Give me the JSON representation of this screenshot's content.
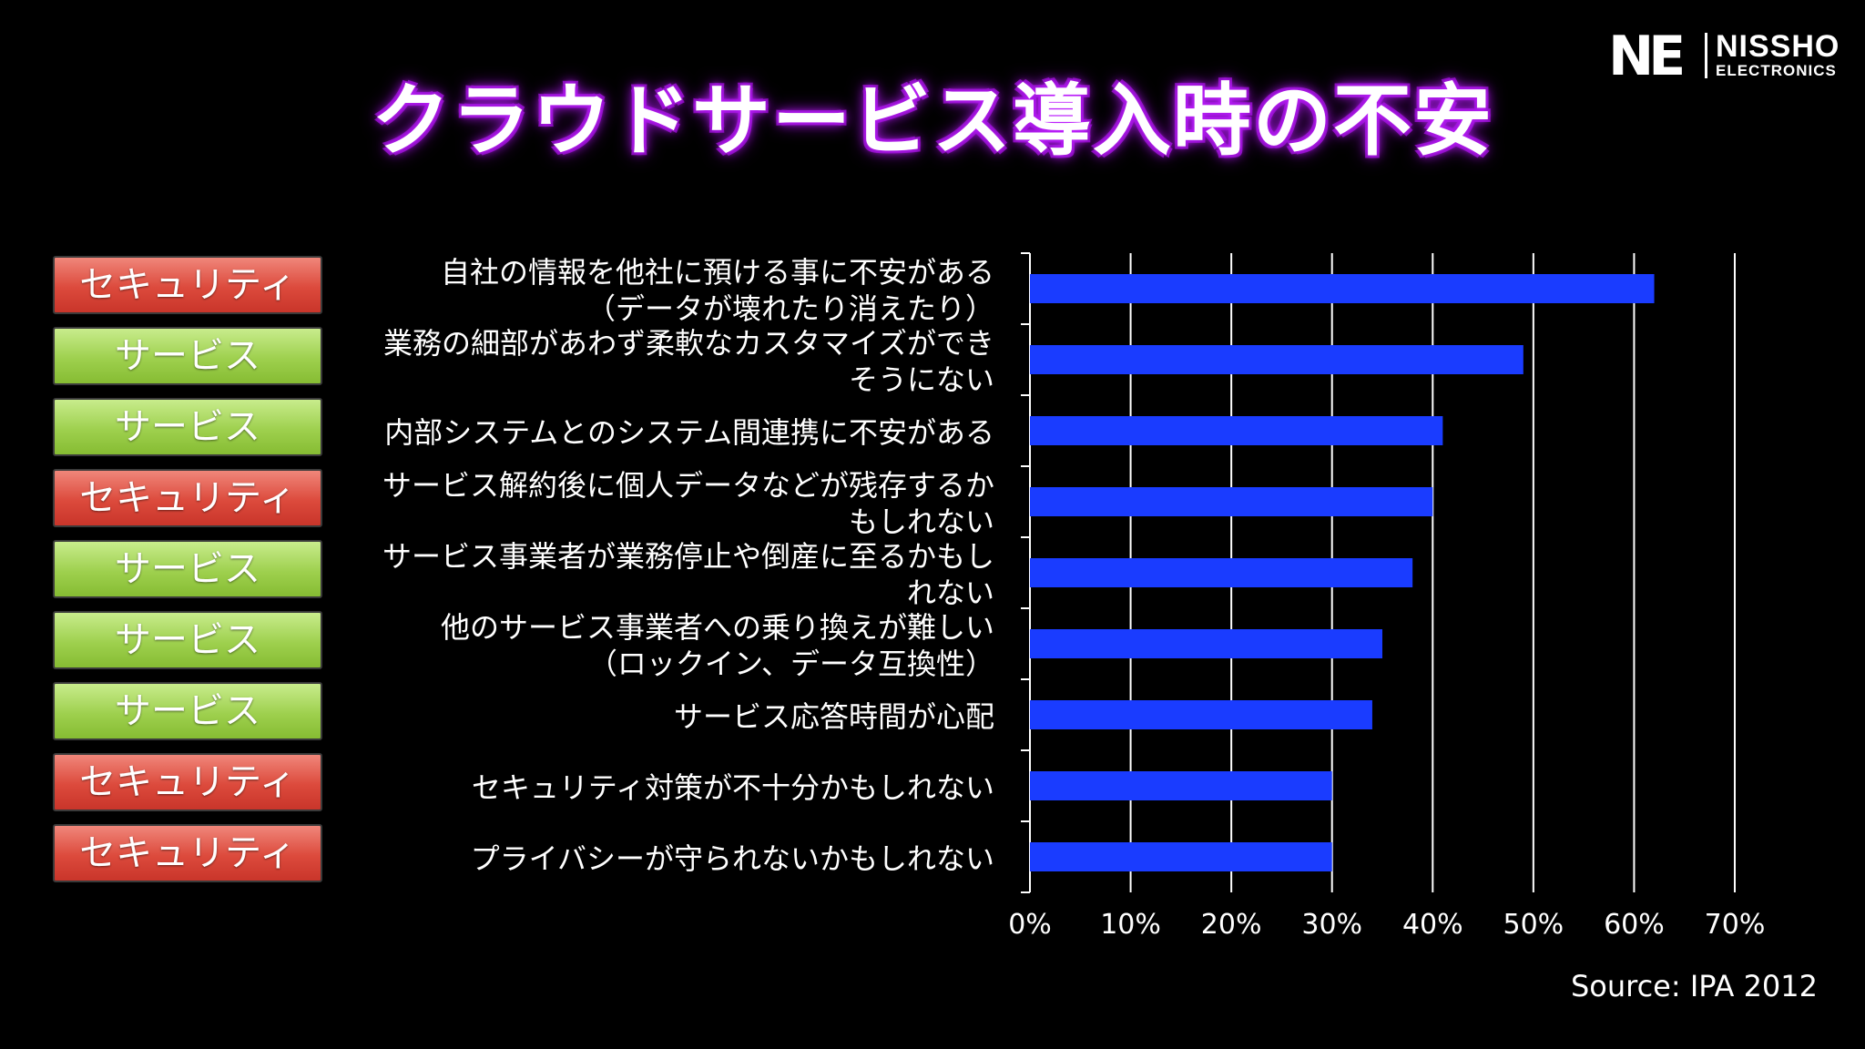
{
  "title": "クラウドサービス導入時の不安",
  "logo": {
    "mark": "NE",
    "line1": "NISSHO",
    "line2": "ELECTRONICS"
  },
  "source": "Source: IPA 2012",
  "colors": {
    "bar": "#1a3cff",
    "security": "#d9473a",
    "service": "#9bcf4e"
  },
  "tags": [
    {
      "label": "セキュリティ",
      "kind": "security"
    },
    {
      "label": "サービス",
      "kind": "service"
    },
    {
      "label": "サービス",
      "kind": "service"
    },
    {
      "label": "セキュリティ",
      "kind": "security"
    },
    {
      "label": "サービス",
      "kind": "service"
    },
    {
      "label": "サービス",
      "kind": "service"
    },
    {
      "label": "サービス",
      "kind": "service"
    },
    {
      "label": "セキュリティ",
      "kind": "security"
    },
    {
      "label": "セキュリティ",
      "kind": "security"
    }
  ],
  "chart_data": {
    "type": "bar",
    "orientation": "horizontal",
    "title": "",
    "xlabel": "",
    "ylabel": "",
    "xlim": [
      0,
      70
    ],
    "x_ticks": [
      "0%",
      "10%",
      "20%",
      "30%",
      "40%",
      "50%",
      "60%",
      "70%"
    ],
    "grid": "vertical",
    "legend": "none",
    "categories": [
      [
        "自社の情報を他社に預ける事に不安がある",
        "（データが壊れたり消えたり）"
      ],
      [
        "業務の細部があわず柔軟なカスタマイズができ",
        "そうにない"
      ],
      [
        "内部システムとのシステム間連携に不安がある"
      ],
      [
        "サービス解約後に個人データなどが残存するか",
        "もしれない"
      ],
      [
        "サービス事業者が業務停止や倒産に至るかもし",
        "れない"
      ],
      [
        "他のサービス事業者への乗り換えが難しい",
        "（ロックイン、データ互換性）"
      ],
      [
        "サービス応答時間が心配"
      ],
      [
        "セキュリティ対策が不十分かもしれない"
      ],
      [
        "プライバシーが守られないかもしれない"
      ]
    ],
    "values": [
      62,
      49,
      41,
      40,
      38,
      35,
      34,
      30,
      30
    ]
  }
}
